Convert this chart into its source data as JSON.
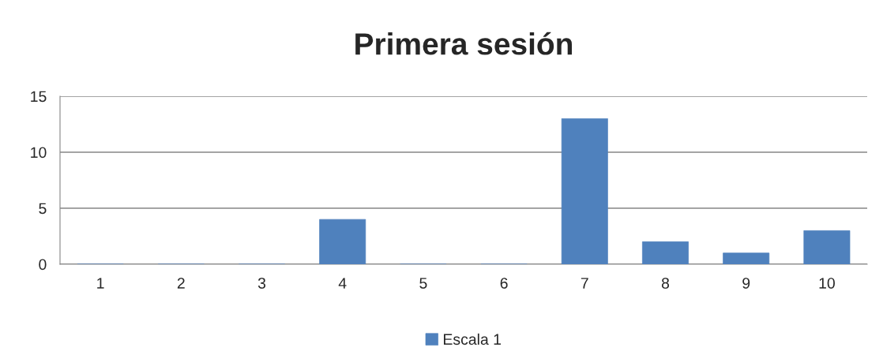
{
  "chart_data": {
    "type": "bar",
    "title": "Primera sesión",
    "categories": [
      "1",
      "2",
      "3",
      "4",
      "5",
      "6",
      "7",
      "8",
      "9",
      "10"
    ],
    "series": [
      {
        "name": "Escala 1",
        "color": "#4f81bd",
        "values": [
          0,
          0,
          0,
          4,
          0,
          0,
          13,
          2,
          1,
          3
        ]
      }
    ],
    "ylim": [
      0,
      15
    ],
    "yticks": [
      0,
      5,
      10,
      15
    ],
    "grid": "y",
    "legend": "bottom"
  }
}
